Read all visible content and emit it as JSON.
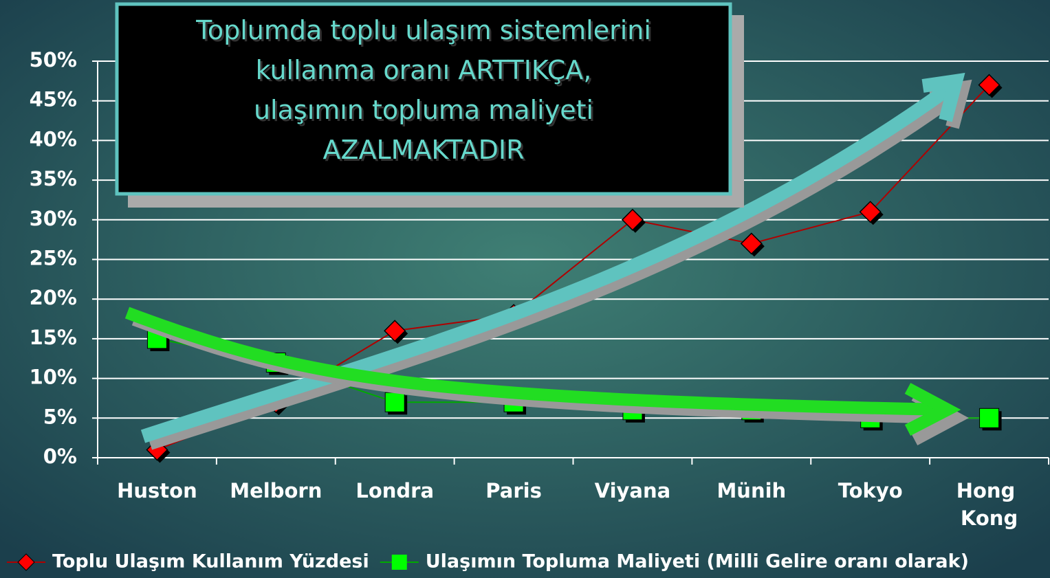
{
  "chart_data": {
    "type": "line",
    "annotation": [
      "Toplumda toplu ulaşım sistemlerini",
      "kullanma oranı ARTTIKÇA,",
      "ulaşımın topluma maliyeti",
      "AZALMAKTADIR"
    ],
    "categories": [
      "Huston",
      "Melborn",
      "Londra",
      "Paris",
      "Viyana",
      "Münih",
      "Tokyo",
      "Hong Kong"
    ],
    "series": [
      {
        "name": "Toplu Ulaşım Kullanım Yüzdesi",
        "color": "#ff0000",
        "marker": "diamond",
        "values": [
          1,
          7,
          16,
          18,
          30,
          27,
          31,
          47
        ]
      },
      {
        "name": "Ulaşımın Topluma Maliyeti (Milli Gelire oranı olarak)",
        "color": "#00ff00",
        "marker": "square",
        "values": [
          15,
          12,
          7,
          7,
          6,
          6,
          5,
          5
        ]
      }
    ],
    "ylim": [
      0,
      50
    ],
    "yticks": [
      {
        "value": 0,
        "label": "0%"
      },
      {
        "value": 5,
        "label": "5%"
      },
      {
        "value": 10,
        "label": "10%"
      },
      {
        "value": 15,
        "label": "15%"
      },
      {
        "value": 20,
        "label": "20%"
      },
      {
        "value": 25,
        "label": "25%"
      },
      {
        "value": 30,
        "label": "30%"
      },
      {
        "value": 35,
        "label": "35%"
      },
      {
        "value": 40,
        "label": "40%"
      },
      {
        "value": 45,
        "label": "45%"
      },
      {
        "value": 50,
        "label": "50%"
      }
    ],
    "grid": true,
    "legend": "bottom"
  }
}
